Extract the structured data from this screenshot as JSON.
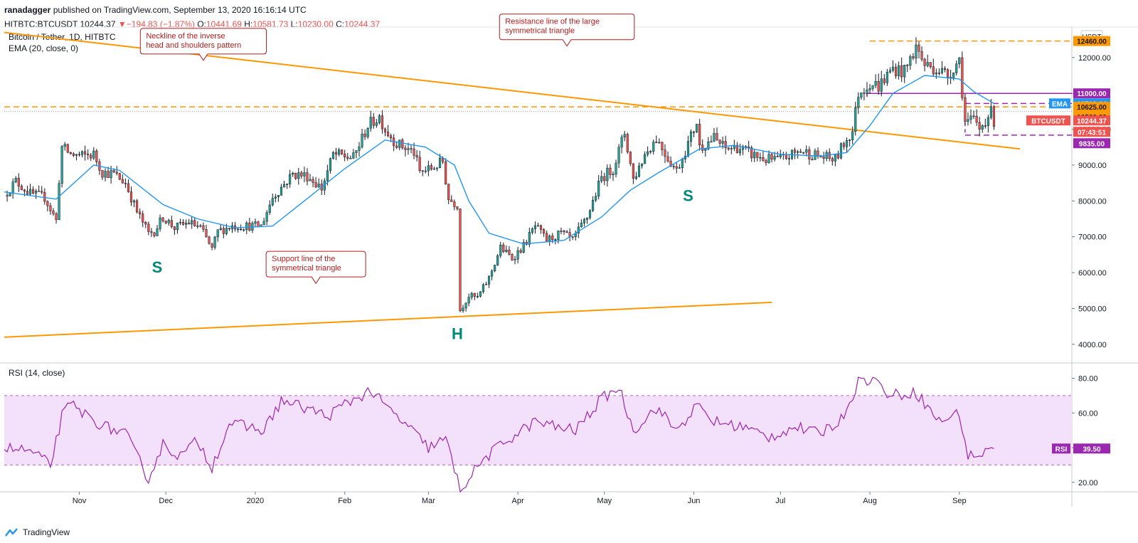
{
  "header": {
    "author": "ranadagger",
    "published": "published on TradingView.com, September 13, 2020 16:16:14 UTC",
    "symbol": "HITBTC:BTCUSDT",
    "last": "10244.37",
    "change": "−194.83 (−1.87%)",
    "open_label": "O:",
    "open": "10441.69",
    "high_label": "H:",
    "high": "10581.73",
    "low_label": "L:",
    "low": "10230.00",
    "close_label": "C:",
    "close": "10244.37"
  },
  "footer": {
    "brand": "TradingView",
    "logo_icon": "tradingview-logo-icon"
  },
  "chart_data": {
    "type": "candlestick",
    "title": "Bitcoin / Tether, 1D, HITBTC",
    "indicator_label": "EMA (20, close, 0)",
    "currency": "USDT",
    "price_axis": {
      "ticks": [
        4000,
        5000,
        6000,
        7000,
        8000,
        9000,
        10000,
        11000,
        12000
      ],
      "tick_labels": [
        "4000.00",
        "5000.00",
        "6000.00",
        "7000.00",
        "8000.00",
        "9000.00",
        "10000.00",
        "11000.00",
        "12000.00"
      ],
      "range": [
        3500,
        12850
      ]
    },
    "time_axis": {
      "labels": [
        "Nov",
        "Dec",
        "2020",
        "Feb",
        "Mar",
        "Apr",
        "May",
        "Jun",
        "Jul",
        "Aug",
        "Sep"
      ],
      "label_dates": [
        "2019-11-01",
        "2019-12-01",
        "2020-01-01",
        "2020-02-01",
        "2020-03-01",
        "2020-04-01",
        "2020-05-01",
        "2020-06-01",
        "2020-07-01",
        "2020-08-01",
        "2020-09-01"
      ],
      "range": [
        "2019-10-06",
        "2020-10-10"
      ]
    },
    "colors": {
      "up": "#26a69a",
      "down": "#ef5350",
      "wick": "#131722",
      "ema": "#2196f3",
      "trend": "#ff9800",
      "annotation": "#b71c1c",
      "rsi": "#9c27b0",
      "rsi_band": "#f3e0fa"
    },
    "close_path": [
      [
        "2019-10-06",
        8150
      ],
      [
        "2019-10-10",
        8550
      ],
      [
        "2019-10-15",
        8200
      ],
      [
        "2019-10-20",
        8100
      ],
      [
        "2019-10-24",
        7450
      ],
      [
        "2019-10-25",
        8600
      ],
      [
        "2019-10-26",
        9500
      ],
      [
        "2019-10-29",
        9300
      ],
      [
        "2019-11-02",
        9250
      ],
      [
        "2019-11-06",
        9300
      ],
      [
        "2019-11-09",
        8800
      ],
      [
        "2019-11-13",
        8750
      ],
      [
        "2019-11-17",
        8500
      ],
      [
        "2019-11-21",
        7700
      ],
      [
        "2019-11-25",
        7100
      ],
      [
        "2019-11-27",
        7150
      ],
      [
        "2019-11-30",
        7550
      ],
      [
        "2019-12-04",
        7250
      ],
      [
        "2019-12-09",
        7400
      ],
      [
        "2019-12-13",
        7250
      ],
      [
        "2019-12-17",
        6650
      ],
      [
        "2019-12-19",
        7150
      ],
      [
        "2019-12-24",
        7300
      ],
      [
        "2019-12-29",
        7300
      ],
      [
        "2020-01-03",
        7300
      ],
      [
        "2020-01-07",
        8100
      ],
      [
        "2020-01-14",
        8750
      ],
      [
        "2020-01-19",
        8700
      ],
      [
        "2020-01-24",
        8350
      ],
      [
        "2020-01-28",
        9300
      ],
      [
        "2020-02-04",
        9200
      ],
      [
        "2020-02-09",
        10100
      ],
      [
        "2020-02-13",
        10350
      ],
      [
        "2020-02-15",
        10000
      ],
      [
        "2020-02-19",
        9600
      ],
      [
        "2020-02-25",
        9350
      ],
      [
        "2020-02-27",
        8800
      ],
      [
        "2020-03-02",
        8900
      ],
      [
        "2020-03-06",
        9100
      ],
      [
        "2020-03-08",
        8050
      ],
      [
        "2020-03-11",
        7900
      ],
      [
        "2020-03-12",
        4950
      ],
      [
        "2020-03-15",
        5350
      ],
      [
        "2020-03-18",
        5300
      ],
      [
        "2020-03-22",
        5850
      ],
      [
        "2020-03-26",
        6700
      ],
      [
        "2020-03-30",
        6400
      ],
      [
        "2020-04-03",
        6750
      ],
      [
        "2020-04-07",
        7300
      ],
      [
        "2020-04-11",
        6900
      ],
      [
        "2020-04-16",
        7100
      ],
      [
        "2020-04-20",
        6900
      ],
      [
        "2020-04-25",
        7550
      ],
      [
        "2020-04-30",
        8650
      ],
      [
        "2020-05-04",
        8900
      ],
      [
        "2020-05-08",
        9900
      ],
      [
        "2020-05-11",
        8600
      ],
      [
        "2020-05-15",
        9300
      ],
      [
        "2020-05-19",
        9750
      ],
      [
        "2020-05-23",
        9200
      ],
      [
        "2020-05-26",
        8850
      ],
      [
        "2020-05-30",
        9600
      ],
      [
        "2020-06-02",
        10200
      ],
      [
        "2020-06-03",
        9500
      ],
      [
        "2020-06-08",
        9750
      ],
      [
        "2020-06-12",
        9450
      ],
      [
        "2020-06-16",
        9500
      ],
      [
        "2020-06-21",
        9300
      ],
      [
        "2020-06-26",
        9150
      ],
      [
        "2020-07-01",
        9150
      ],
      [
        "2020-07-08",
        9400
      ],
      [
        "2020-07-14",
        9250
      ],
      [
        "2020-07-20",
        9150
      ],
      [
        "2020-07-23",
        9600
      ],
      [
        "2020-07-26",
        9950
      ],
      [
        "2020-07-28",
        11000
      ],
      [
        "2020-08-01",
        11300
      ],
      [
        "2020-08-04",
        11200
      ],
      [
        "2020-08-09",
        11700
      ],
      [
        "2020-08-13",
        11600
      ],
      [
        "2020-08-17",
        12300
      ],
      [
        "2020-08-20",
        11800
      ],
      [
        "2020-08-24",
        11700
      ],
      [
        "2020-08-28",
        11500
      ],
      [
        "2020-09-01",
        11950
      ],
      [
        "2020-09-03",
        10200
      ],
      [
        "2020-09-06",
        10250
      ],
      [
        "2020-09-08",
        10000
      ],
      [
        "2020-09-11",
        10400
      ],
      [
        "2020-09-12",
        10450
      ],
      [
        "2020-09-13",
        10244
      ]
    ],
    "ema_path": [
      [
        "2019-10-06",
        8250
      ],
      [
        "2019-10-24",
        8050
      ],
      [
        "2019-11-06",
        9000
      ],
      [
        "2019-11-15",
        8850
      ],
      [
        "2019-11-30",
        7900
      ],
      [
        "2019-12-12",
        7500
      ],
      [
        "2019-12-25",
        7250
      ],
      [
        "2020-01-07",
        7300
      ],
      [
        "2020-01-18",
        8000
      ],
      [
        "2020-02-01",
        8900
      ],
      [
        "2020-02-15",
        9700
      ],
      [
        "2020-02-29",
        9500
      ],
      [
        "2020-03-10",
        9000
      ],
      [
        "2020-03-15",
        8000
      ],
      [
        "2020-03-22",
        7100
      ],
      [
        "2020-04-03",
        6800
      ],
      [
        "2020-04-17",
        6900
      ],
      [
        "2020-04-30",
        7550
      ],
      [
        "2020-05-10",
        8300
      ],
      [
        "2020-05-20",
        8800
      ],
      [
        "2020-06-03",
        9450
      ],
      [
        "2020-06-15",
        9550
      ],
      [
        "2020-07-01",
        9300
      ],
      [
        "2020-07-15",
        9250
      ],
      [
        "2020-07-24",
        9350
      ],
      [
        "2020-08-01",
        10100
      ],
      [
        "2020-08-09",
        11000
      ],
      [
        "2020-08-20",
        11500
      ],
      [
        "2020-09-01",
        11400
      ],
      [
        "2020-09-06",
        11050
      ],
      [
        "2020-09-13",
        10719.64
      ]
    ],
    "rsi": {
      "label": "RSI (14, close)",
      "value": 39.5,
      "value_label": "39.50",
      "ticks": [
        20,
        40,
        60,
        80
      ],
      "tick_labels": [
        "20.00",
        "40.00",
        "60.00",
        "80.00"
      ],
      "range": [
        15,
        88
      ],
      "band": [
        30,
        70
      ],
      "path": [
        [
          "2019-10-06",
          40
        ],
        [
          "2019-10-15",
          38
        ],
        [
          "2019-10-22",
          30
        ],
        [
          "2019-10-26",
          58
        ],
        [
          "2019-10-29",
          65
        ],
        [
          "2019-11-04",
          58
        ],
        [
          "2019-11-10",
          52
        ],
        [
          "2019-11-17",
          48
        ],
        [
          "2019-11-25",
          22
        ],
        [
          "2019-11-30",
          42
        ],
        [
          "2019-12-06",
          35
        ],
        [
          "2019-12-12",
          44
        ],
        [
          "2019-12-17",
          29
        ],
        [
          "2019-12-23",
          54
        ],
        [
          "2019-12-29",
          52
        ],
        [
          "2020-01-04",
          50
        ],
        [
          "2020-01-10",
          67
        ],
        [
          "2020-01-20",
          62
        ],
        [
          "2020-01-26",
          58
        ],
        [
          "2020-02-01",
          65
        ],
        [
          "2020-02-10",
          73
        ],
        [
          "2020-02-15",
          64
        ],
        [
          "2020-02-23",
          52
        ],
        [
          "2020-03-01",
          40
        ],
        [
          "2020-03-07",
          45
        ],
        [
          "2020-03-12",
          16
        ],
        [
          "2020-03-20",
          33
        ],
        [
          "2020-03-28",
          44
        ],
        [
          "2020-04-07",
          55
        ],
        [
          "2020-04-14",
          52
        ],
        [
          "2020-04-21",
          50
        ],
        [
          "2020-04-30",
          68
        ],
        [
          "2020-05-06",
          75
        ],
        [
          "2020-05-11",
          50
        ],
        [
          "2020-05-19",
          63
        ],
        [
          "2020-05-26",
          50
        ],
        [
          "2020-06-02",
          64
        ],
        [
          "2020-06-08",
          55
        ],
        [
          "2020-06-18",
          52
        ],
        [
          "2020-06-27",
          46
        ],
        [
          "2020-07-06",
          52
        ],
        [
          "2020-07-14",
          48
        ],
        [
          "2020-07-22",
          56
        ],
        [
          "2020-07-28",
          78
        ],
        [
          "2020-08-02",
          80
        ],
        [
          "2020-08-08",
          70
        ],
        [
          "2020-08-17",
          72
        ],
        [
          "2020-08-25",
          55
        ],
        [
          "2020-09-01",
          60
        ],
        [
          "2020-09-04",
          35
        ],
        [
          "2020-09-08",
          36
        ],
        [
          "2020-09-13",
          39.5
        ]
      ]
    },
    "horizontal_levels": [
      {
        "price": 12460,
        "label": "12460.00",
        "style": "dashed",
        "color": "#ff9800",
        "from": "2020-08-01",
        "to": "2020-10-10"
      },
      {
        "price": 10625,
        "label": "10625.00",
        "style": "dashed",
        "color": "#ff9800",
        "from": "2019-10-06",
        "to": "2020-10-10"
      },
      {
        "price": 11000,
        "label": "11000.00",
        "style": "solid",
        "color": "#9c27b0",
        "from": "2020-07-31",
        "to": "2020-10-10"
      },
      {
        "price": 10719.64,
        "label": "10719.64",
        "style": "dashed",
        "color": "#9c27b0",
        "from": "2020-09-03",
        "to": "2020-10-10"
      },
      {
        "price": 9835,
        "label": "9835.00",
        "style": "dashed",
        "color": "#9c27b0",
        "from": "2020-09-03",
        "to": "2020-10-10"
      },
      {
        "price": 10500,
        "label": "10500.00",
        "style": "dotted",
        "color": "#9e9e9e",
        "from": "2019-10-06",
        "to": "2020-10-10"
      }
    ],
    "trendlines": [
      {
        "name": "resistance",
        "from": [
          "2019-10-06",
          12700
        ],
        "to": [
          "2020-09-22",
          9450
        ]
      },
      {
        "name": "support",
        "from": [
          "2019-10-06",
          4200
        ],
        "to": [
          "2020-06-28",
          5170
        ]
      }
    ],
    "price_labels": [
      {
        "text": "12460.00",
        "price": 12460,
        "bg": "#ff9800",
        "fg": "#131722"
      },
      {
        "text": "11000.00",
        "price": 11000,
        "bg": "#9c27b0",
        "fg": "#ffffff"
      },
      {
        "text": "EMA",
        "value_text": "10719.64",
        "price": 10719.64,
        "bg": "#2196f3",
        "fg": "#ffffff"
      },
      {
        "text": "10625.00",
        "price": 10625,
        "bg": "#ff9800",
        "fg": "#131722"
      },
      {
        "text": "10500.00",
        "price": 10500,
        "bg": "#ff9800",
        "fg": "#131722"
      },
      {
        "text": "BTCUSDT",
        "value_text": "10244.37",
        "price": 10244.37,
        "bg": "#ef5350",
        "fg": "#ffffff"
      },
      {
        "text": "07:43:51",
        "price": 9950,
        "bg": "#ef5350",
        "fg": "#ffffff"
      },
      {
        "text": "9835.00",
        "price": 9835,
        "bg": "#9c27b0",
        "fg": "#ffffff"
      }
    ],
    "annotations": [
      {
        "lines": [
          "Resistance line of the large",
          "symmetrical triangle"
        ],
        "anchor_date": "2020-04-18",
        "anchor_price": 12300
      },
      {
        "lines": [
          "Neckline of the inverse",
          "head and shoulders pattern"
        ],
        "anchor_date": "2019-12-14",
        "anchor_price": 11900
      },
      {
        "lines": [
          "Support line of the",
          "symmetrical triangle"
        ],
        "anchor_date": "2020-01-22",
        "anchor_price": 5680
      }
    ],
    "pattern_labels": [
      {
        "text": "S",
        "date": "2019-11-28",
        "price": 6000
      },
      {
        "text": "H",
        "date": "2020-03-11",
        "price": 4150
      },
      {
        "text": "S",
        "date": "2020-05-30",
        "price": 8000
      }
    ]
  }
}
